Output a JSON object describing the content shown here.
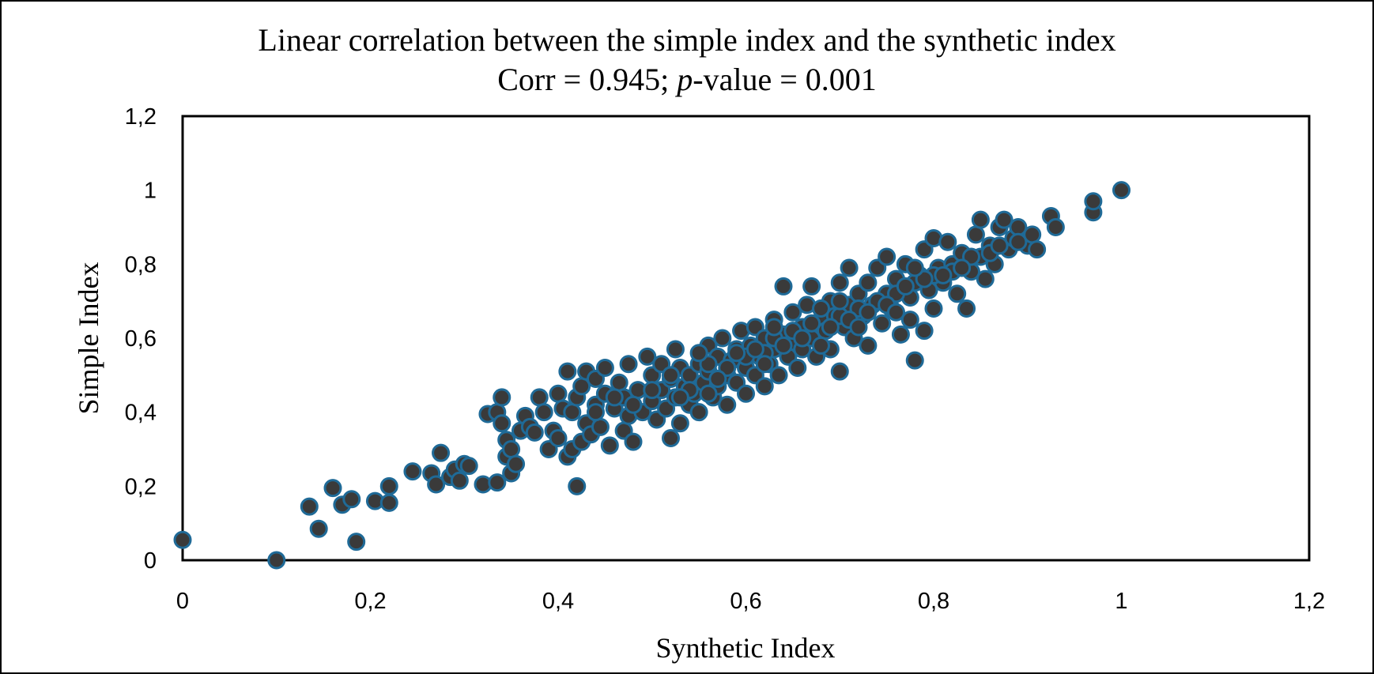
{
  "chart_data": {
    "type": "scatter",
    "title": "Linear correlation between the simple index and the synthetic index",
    "subtitle": {
      "prefix": "Corr = 0.945; ",
      "italic": "p",
      "suffix": "-value = 0.001"
    },
    "xlabel": "Synthetic Index",
    "ylabel": "Simple Index",
    "xlim": [
      0,
      1.2
    ],
    "ylim": [
      0,
      1.2
    ],
    "xticks": [
      "0",
      "0,2",
      "0,4",
      "0,6",
      "0,8",
      "1",
      "1,2"
    ],
    "yticks": [
      "0",
      "0,2",
      "0,4",
      "0,6",
      "0,8",
      "1",
      "1,2"
    ],
    "grid": false,
    "legend": "none",
    "marker_fill": "#3a3a3a",
    "marker_edge": "#1f6a97",
    "points": [
      [
        0.0,
        0.055
      ],
      [
        0.1,
        0.0
      ],
      [
        0.135,
        0.145
      ],
      [
        0.145,
        0.085
      ],
      [
        0.16,
        0.195
      ],
      [
        0.17,
        0.15
      ],
      [
        0.18,
        0.165
      ],
      [
        0.185,
        0.05
      ],
      [
        0.205,
        0.16
      ],
      [
        0.22,
        0.155
      ],
      [
        0.22,
        0.2
      ],
      [
        0.245,
        0.24
      ],
      [
        0.265,
        0.235
      ],
      [
        0.27,
        0.205
      ],
      [
        0.275,
        0.29
      ],
      [
        0.285,
        0.225
      ],
      [
        0.29,
        0.245
      ],
      [
        0.295,
        0.215
      ],
      [
        0.3,
        0.26
      ],
      [
        0.305,
        0.255
      ],
      [
        0.32,
        0.205
      ],
      [
        0.325,
        0.395
      ],
      [
        0.335,
        0.21
      ],
      [
        0.335,
        0.4
      ],
      [
        0.34,
        0.37
      ],
      [
        0.34,
        0.44
      ],
      [
        0.345,
        0.28
      ],
      [
        0.345,
        0.325
      ],
      [
        0.35,
        0.235
      ],
      [
        0.35,
        0.3
      ],
      [
        0.355,
        0.26
      ],
      [
        0.36,
        0.35
      ],
      [
        0.365,
        0.39
      ],
      [
        0.37,
        0.36
      ],
      [
        0.375,
        0.345
      ],
      [
        0.38,
        0.44
      ],
      [
        0.385,
        0.4
      ],
      [
        0.39,
        0.3
      ],
      [
        0.395,
        0.35
      ],
      [
        0.4,
        0.33
      ],
      [
        0.4,
        0.45
      ],
      [
        0.405,
        0.41
      ],
      [
        0.41,
        0.51
      ],
      [
        0.41,
        0.28
      ],
      [
        0.415,
        0.3
      ],
      [
        0.415,
        0.4
      ],
      [
        0.42,
        0.2
      ],
      [
        0.42,
        0.44
      ],
      [
        0.425,
        0.32
      ],
      [
        0.425,
        0.47
      ],
      [
        0.43,
        0.37
      ],
      [
        0.43,
        0.51
      ],
      [
        0.435,
        0.34
      ],
      [
        0.44,
        0.42
      ],
      [
        0.44,
        0.49
      ],
      [
        0.445,
        0.36
      ],
      [
        0.45,
        0.45
      ],
      [
        0.45,
        0.52
      ],
      [
        0.455,
        0.31
      ],
      [
        0.46,
        0.41
      ],
      [
        0.465,
        0.48
      ],
      [
        0.47,
        0.35
      ],
      [
        0.47,
        0.44
      ],
      [
        0.475,
        0.39
      ],
      [
        0.475,
        0.53
      ],
      [
        0.48,
        0.32
      ],
      [
        0.485,
        0.46
      ],
      [
        0.49,
        0.4
      ],
      [
        0.495,
        0.55
      ],
      [
        0.5,
        0.43
      ],
      [
        0.5,
        0.5
      ],
      [
        0.505,
        0.38
      ],
      [
        0.51,
        0.46
      ],
      [
        0.51,
        0.53
      ],
      [
        0.515,
        0.41
      ],
      [
        0.52,
        0.49
      ],
      [
        0.52,
        0.33
      ],
      [
        0.525,
        0.44
      ],
      [
        0.525,
        0.57
      ],
      [
        0.53,
        0.37
      ],
      [
        0.53,
        0.52
      ],
      [
        0.535,
        0.47
      ],
      [
        0.54,
        0.42
      ],
      [
        0.54,
        0.5
      ],
      [
        0.545,
        0.45
      ],
      [
        0.55,
        0.53
      ],
      [
        0.55,
        0.4
      ],
      [
        0.555,
        0.48
      ],
      [
        0.56,
        0.51
      ],
      [
        0.56,
        0.58
      ],
      [
        0.565,
        0.44
      ],
      [
        0.57,
        0.55
      ],
      [
        0.57,
        0.47
      ],
      [
        0.575,
        0.6
      ],
      [
        0.58,
        0.5
      ],
      [
        0.58,
        0.42
      ],
      [
        0.585,
        0.54
      ],
      [
        0.59,
        0.57
      ],
      [
        0.59,
        0.48
      ],
      [
        0.595,
        0.62
      ],
      [
        0.6,
        0.52
      ],
      [
        0.6,
        0.45
      ],
      [
        0.605,
        0.58
      ],
      [
        0.61,
        0.5
      ],
      [
        0.61,
        0.63
      ],
      [
        0.615,
        0.55
      ],
      [
        0.62,
        0.47
      ],
      [
        0.62,
        0.6
      ],
      [
        0.625,
        0.53
      ],
      [
        0.63,
        0.65
      ],
      [
        0.63,
        0.57
      ],
      [
        0.635,
        0.5
      ],
      [
        0.64,
        0.61
      ],
      [
        0.64,
        0.74
      ],
      [
        0.645,
        0.55
      ],
      [
        0.65,
        0.67
      ],
      [
        0.65,
        0.59
      ],
      [
        0.655,
        0.52
      ],
      [
        0.66,
        0.63
      ],
      [
        0.66,
        0.57
      ],
      [
        0.665,
        0.69
      ],
      [
        0.67,
        0.6
      ],
      [
        0.67,
        0.74
      ],
      [
        0.675,
        0.55
      ],
      [
        0.68,
        0.65
      ],
      [
        0.685,
        0.62
      ],
      [
        0.69,
        0.7
      ],
      [
        0.69,
        0.57
      ],
      [
        0.695,
        0.66
      ],
      [
        0.7,
        0.75
      ],
      [
        0.7,
        0.51
      ],
      [
        0.705,
        0.63
      ],
      [
        0.71,
        0.69
      ],
      [
        0.71,
        0.79
      ],
      [
        0.715,
        0.6
      ],
      [
        0.72,
        0.72
      ],
      [
        0.725,
        0.66
      ],
      [
        0.73,
        0.58
      ],
      [
        0.73,
        0.75
      ],
      [
        0.735,
        0.69
      ],
      [
        0.74,
        0.79
      ],
      [
        0.745,
        0.64
      ],
      [
        0.75,
        0.72
      ],
      [
        0.75,
        0.82
      ],
      [
        0.755,
        0.68
      ],
      [
        0.76,
        0.76
      ],
      [
        0.765,
        0.61
      ],
      [
        0.77,
        0.8
      ],
      [
        0.775,
        0.71
      ],
      [
        0.775,
        0.65
      ],
      [
        0.78,
        0.54
      ],
      [
        0.785,
        0.77
      ],
      [
        0.79,
        0.62
      ],
      [
        0.79,
        0.84
      ],
      [
        0.795,
        0.73
      ],
      [
        0.8,
        0.87
      ],
      [
        0.8,
        0.68
      ],
      [
        0.805,
        0.79
      ],
      [
        0.81,
        0.75
      ],
      [
        0.815,
        0.86
      ],
      [
        0.82,
        0.8
      ],
      [
        0.825,
        0.72
      ],
      [
        0.83,
        0.83
      ],
      [
        0.835,
        0.68
      ],
      [
        0.84,
        0.78
      ],
      [
        0.845,
        0.88
      ],
      [
        0.85,
        0.92
      ],
      [
        0.85,
        0.82
      ],
      [
        0.855,
        0.76
      ],
      [
        0.86,
        0.85
      ],
      [
        0.865,
        0.8
      ],
      [
        0.87,
        0.9
      ],
      [
        0.875,
        0.92
      ],
      [
        0.88,
        0.84
      ],
      [
        0.885,
        0.87
      ],
      [
        0.89,
        0.9
      ],
      [
        0.9,
        0.85
      ],
      [
        0.905,
        0.88
      ],
      [
        0.91,
        0.84
      ],
      [
        0.925,
        0.93
      ],
      [
        0.93,
        0.9
      ],
      [
        0.97,
        0.94
      ],
      [
        0.97,
        0.97
      ],
      [
        1.0,
        1.0
      ],
      [
        0.52,
        0.5
      ],
      [
        0.54,
        0.46
      ],
      [
        0.56,
        0.45
      ],
      [
        0.58,
        0.52
      ],
      [
        0.6,
        0.55
      ],
      [
        0.62,
        0.56
      ],
      [
        0.63,
        0.6
      ],
      [
        0.65,
        0.62
      ],
      [
        0.67,
        0.64
      ],
      [
        0.68,
        0.68
      ],
      [
        0.7,
        0.66
      ],
      [
        0.72,
        0.68
      ],
      [
        0.74,
        0.7
      ],
      [
        0.76,
        0.72
      ],
      [
        0.78,
        0.75
      ],
      [
        0.8,
        0.77
      ],
      [
        0.82,
        0.78
      ],
      [
        0.84,
        0.82
      ],
      [
        0.86,
        0.83
      ],
      [
        0.48,
        0.42
      ],
      [
        0.5,
        0.46
      ],
      [
        0.46,
        0.44
      ],
      [
        0.44,
        0.4
      ],
      [
        0.56,
        0.53
      ],
      [
        0.59,
        0.56
      ],
      [
        0.61,
        0.57
      ],
      [
        0.64,
        0.58
      ],
      [
        0.66,
        0.6
      ],
      [
        0.69,
        0.63
      ],
      [
        0.71,
        0.65
      ],
      [
        0.73,
        0.67
      ],
      [
        0.75,
        0.69
      ],
      [
        0.77,
        0.74
      ],
      [
        0.79,
        0.76
      ],
      [
        0.81,
        0.77
      ],
      [
        0.83,
        0.79
      ],
      [
        0.87,
        0.85
      ],
      [
        0.89,
        0.86
      ],
      [
        0.53,
        0.44
      ],
      [
        0.57,
        0.49
      ],
      [
        0.62,
        0.53
      ],
      [
        0.68,
        0.58
      ],
      [
        0.72,
        0.63
      ],
      [
        0.76,
        0.67
      ],
      [
        0.55,
        0.56
      ],
      [
        0.63,
        0.63
      ],
      [
        0.7,
        0.7
      ],
      [
        0.78,
        0.79
      ]
    ]
  }
}
